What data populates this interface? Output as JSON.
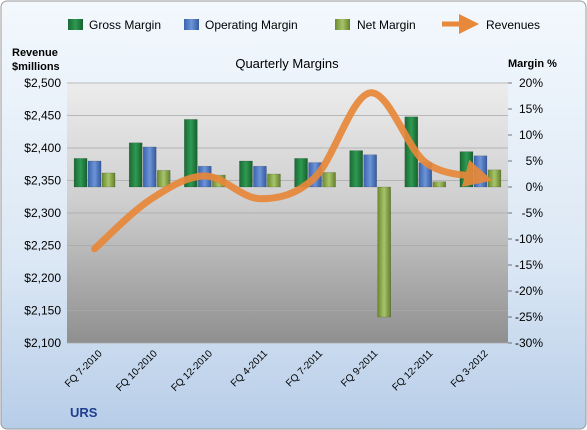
{
  "colors": {
    "gross": "#1e7a3e",
    "operating": "#4472c4",
    "net": "#7a9a3a",
    "revenue": "#e8883a",
    "text": "#000000",
    "company": "#1f3f8f"
  },
  "company": "URS",
  "chart_data": {
    "type": "bar",
    "title": "Quarterly Margins",
    "left_axis": {
      "label_lines": [
        "Revenue",
        "$millions"
      ],
      "min": 2100,
      "max": 2500,
      "step": 50,
      "tick_labels": [
        "$2,100",
        "$2,150",
        "$2,200",
        "$2,250",
        "$2,300",
        "$2,350",
        "$2,400",
        "$2,450",
        "$2,500"
      ]
    },
    "right_axis": {
      "label": "Margin %",
      "min": -30,
      "max": 20,
      "step": 5,
      "tick_labels": [
        "-30%",
        "-25%",
        "-20%",
        "-15%",
        "-10%",
        "-5%",
        "0%",
        "5%",
        "10%",
        "15%",
        "20%"
      ]
    },
    "categories": [
      "FQ 7-2010",
      "FQ 10-2010",
      "FQ 12-2010",
      "FQ 4-2011",
      "FQ 7-2011",
      "FQ 9-2011",
      "FQ 12-2011",
      "FQ 3-2012"
    ],
    "series": [
      {
        "name": "Gross Margin",
        "type": "bar",
        "axis": "right",
        "color_key": "gross",
        "values": [
          5.5,
          8.5,
          13.0,
          5.0,
          5.5,
          7.0,
          13.5,
          6.8
        ]
      },
      {
        "name": "Operating Margin",
        "type": "bar",
        "axis": "right",
        "color_key": "operating",
        "values": [
          5.0,
          7.7,
          4.0,
          4.0,
          4.7,
          6.2,
          4.7,
          6.0
        ]
      },
      {
        "name": "Net Margin",
        "type": "bar",
        "axis": "right",
        "color_key": "net",
        "values": [
          2.7,
          3.2,
          2.3,
          2.5,
          2.8,
          -25.0,
          1.0,
          3.3
        ]
      },
      {
        "name": "Revenues",
        "type": "line",
        "axis": "left",
        "color_key": "revenue",
        "values": [
          2245,
          2320,
          2357,
          2322,
          2355,
          2485,
          2378,
          2355
        ]
      }
    ],
    "grid": true,
    "legend_position": "top"
  }
}
